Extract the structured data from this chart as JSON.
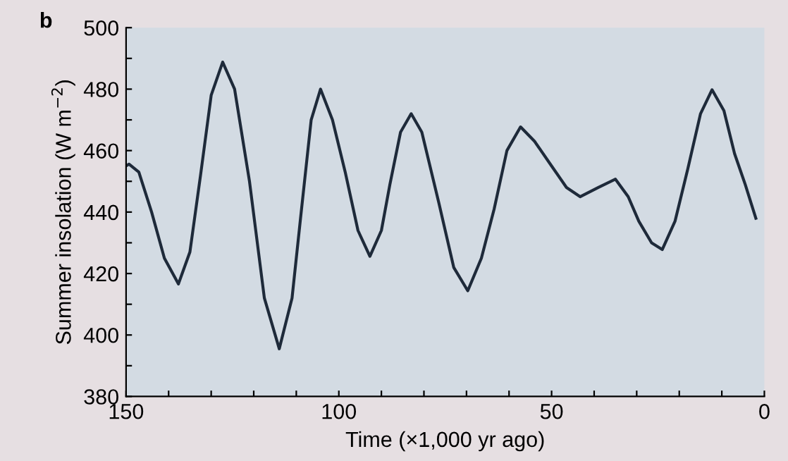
{
  "chart_data": {
    "type": "line",
    "title": "b",
    "xlabel": "Time (×1,000 yr ago)",
    "ylabel": "Summer insolation (W m$^{−2}$)",
    "x": [
      150,
      149.3,
      147,
      144,
      141,
      137.7,
      135,
      132.5,
      130,
      127.3,
      124.5,
      121,
      117.5,
      114,
      111,
      109,
      106.5,
      104.3,
      101.5,
      98.5,
      95.5,
      92.7,
      90,
      88,
      85.5,
      83,
      80.5,
      76.5,
      73,
      69.7,
      66.5,
      63.5,
      60.5,
      57.3,
      54,
      50,
      46.5,
      43.3,
      39,
      35,
      32,
      29.5,
      26.5,
      24,
      21,
      18,
      15,
      12.3,
      9.5,
      7,
      4.5,
      2
    ],
    "series": [
      {
        "color": "#1e2a3a",
        "values": [
          455,
          455.6,
          453,
          440,
          425,
          416.6,
          427,
          452,
          478,
          488.8,
          480,
          450,
          412,
          395.5,
          412,
          438,
          470,
          480,
          470,
          453,
          434,
          425.6,
          434,
          449,
          466,
          472,
          466,
          443,
          422,
          414.4,
          425,
          441,
          460,
          467.7,
          463,
          455,
          448,
          445,
          448,
          450.7,
          445,
          437,
          430,
          427.8,
          437,
          454,
          472,
          479.8,
          473,
          459,
          449,
          438
        ]
      }
    ],
    "xlim": [
      150,
      0
    ],
    "ylim": [
      380,
      500
    ],
    "xticks": [
      150,
      {
        "value": 140,
        "label": null
      },
      {
        "value": 130,
        "label": null
      },
      {
        "value": 120,
        "label": null
      },
      {
        "value": 110,
        "label": null
      },
      100,
      {
        "value": 90,
        "label": null
      },
      {
        "value": 80,
        "label": null
      },
      {
        "value": 70,
        "label": null
      },
      {
        "value": 60,
        "label": null
      },
      50,
      {
        "value": 40,
        "label": null
      },
      {
        "value": 30,
        "label": null
      },
      {
        "value": 20,
        "label": null
      },
      {
        "value": 10,
        "label": null
      },
      0
    ],
    "yticks": [
      380,
      {
        "value": 390,
        "label": null
      },
      400,
      {
        "value": 410,
        "label": null
      },
      420,
      {
        "value": 430,
        "label": null
      },
      440,
      {
        "value": 450,
        "label": null
      },
      460,
      {
        "value": 470,
        "label": null
      },
      480,
      {
        "value": 490,
        "label": null
      },
      500
    ],
    "grid": false,
    "legend": false,
    "marker": "none",
    "line_style": "solid"
  }
}
